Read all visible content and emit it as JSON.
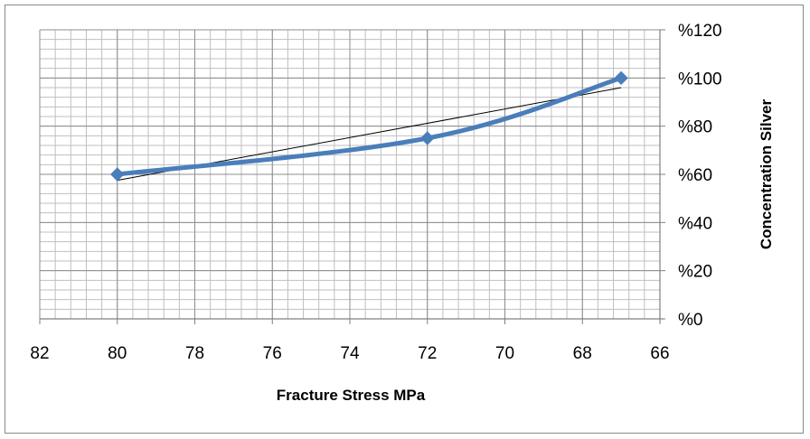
{
  "chart_data": {
    "type": "line",
    "title": "",
    "xlabel": "Fracture Stress MPa",
    "ylabel": "Concentration Silver",
    "x_ticks": [
      "82",
      "80",
      "78",
      "76",
      "74",
      "72",
      "70",
      "68",
      "66"
    ],
    "y_ticks": [
      "%0",
      "%20",
      "%40",
      "%60",
      "%80",
      "%100",
      "%120"
    ],
    "xlim": [
      82,
      66
    ],
    "ylim": [
      0,
      120
    ],
    "x_reversed": true,
    "y_axis_side": "right",
    "grid": true,
    "series": [
      {
        "color": "#4a7ebb",
        "marker": "diamond",
        "smooth": true,
        "points": [
          {
            "x": 80,
            "y": 60
          },
          {
            "x": 72,
            "y": 75
          },
          {
            "x": 67,
            "y": 100
          }
        ]
      }
    ],
    "trendline": {
      "type": "linear",
      "color": "#000000",
      "start": {
        "x": 80,
        "y": 57.5
      },
      "end": {
        "x": 67,
        "y": 96
      }
    }
  }
}
